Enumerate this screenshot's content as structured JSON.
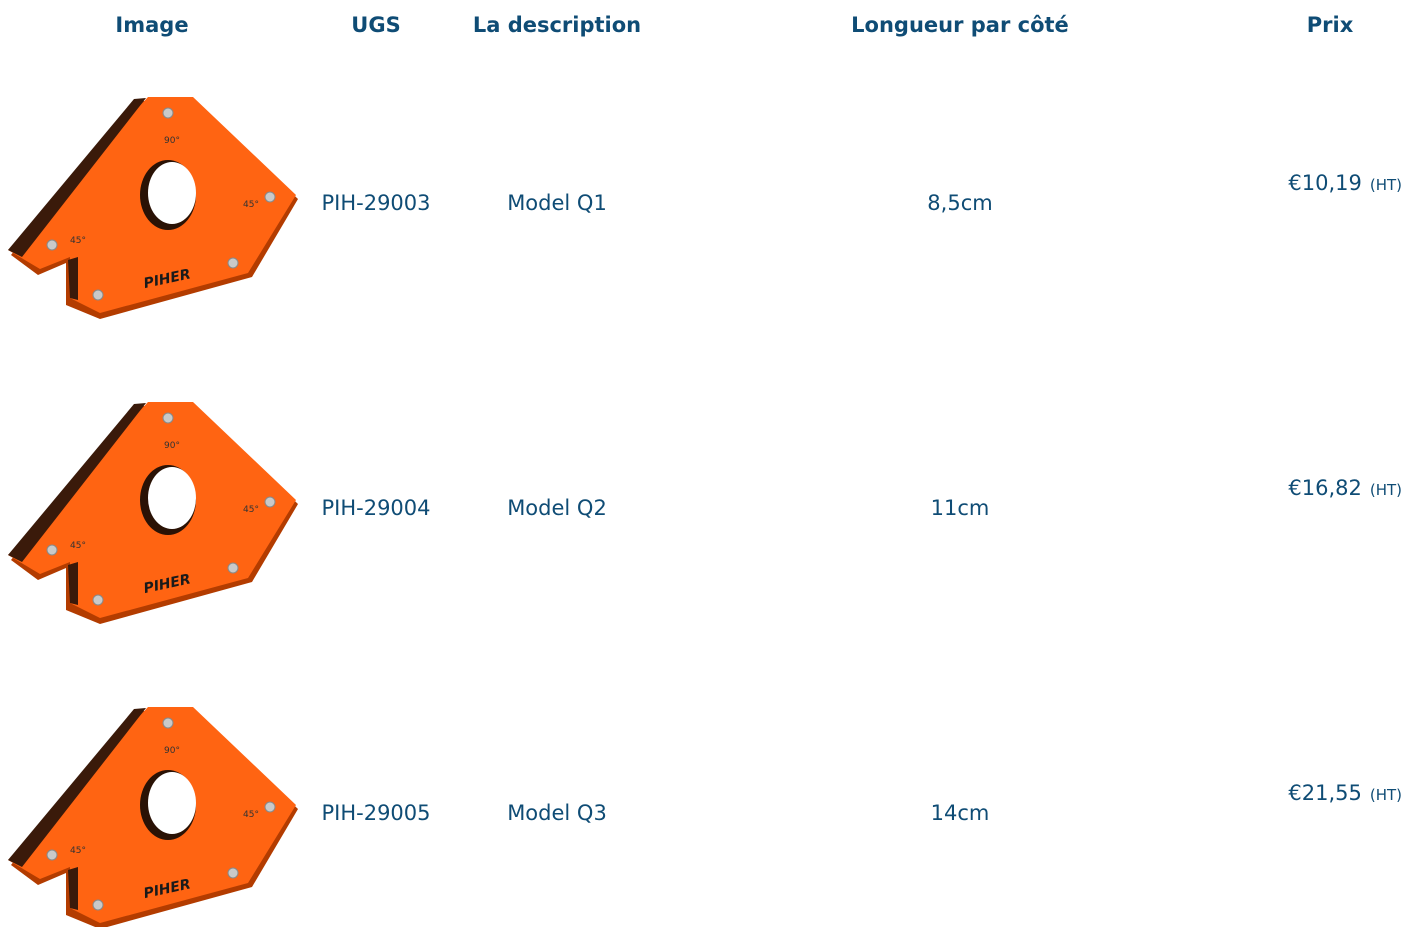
{
  "table": {
    "header": [
      "Image",
      "UGS",
      "La description",
      "Longueur par côté",
      "Prix"
    ],
    "rows": [
      {
        "sku": "PIH-29003",
        "description": "Model Q1",
        "length": "8,5cm",
        "price": "€10,19",
        "price_note": "(HT)"
      },
      {
        "sku": "PIH-29004",
        "description": "Model Q2",
        "length": "11cm",
        "price": "€16,82",
        "price_note": "(HT)"
      },
      {
        "sku": "PIH-29005",
        "description": "Model Q3",
        "length": "14cm",
        "price": "€21,55",
        "price_note": "(HT)"
      }
    ]
  },
  "product_image": {
    "angle_top": "90°",
    "angle_side": "45°",
    "brand": "PIHER"
  }
}
